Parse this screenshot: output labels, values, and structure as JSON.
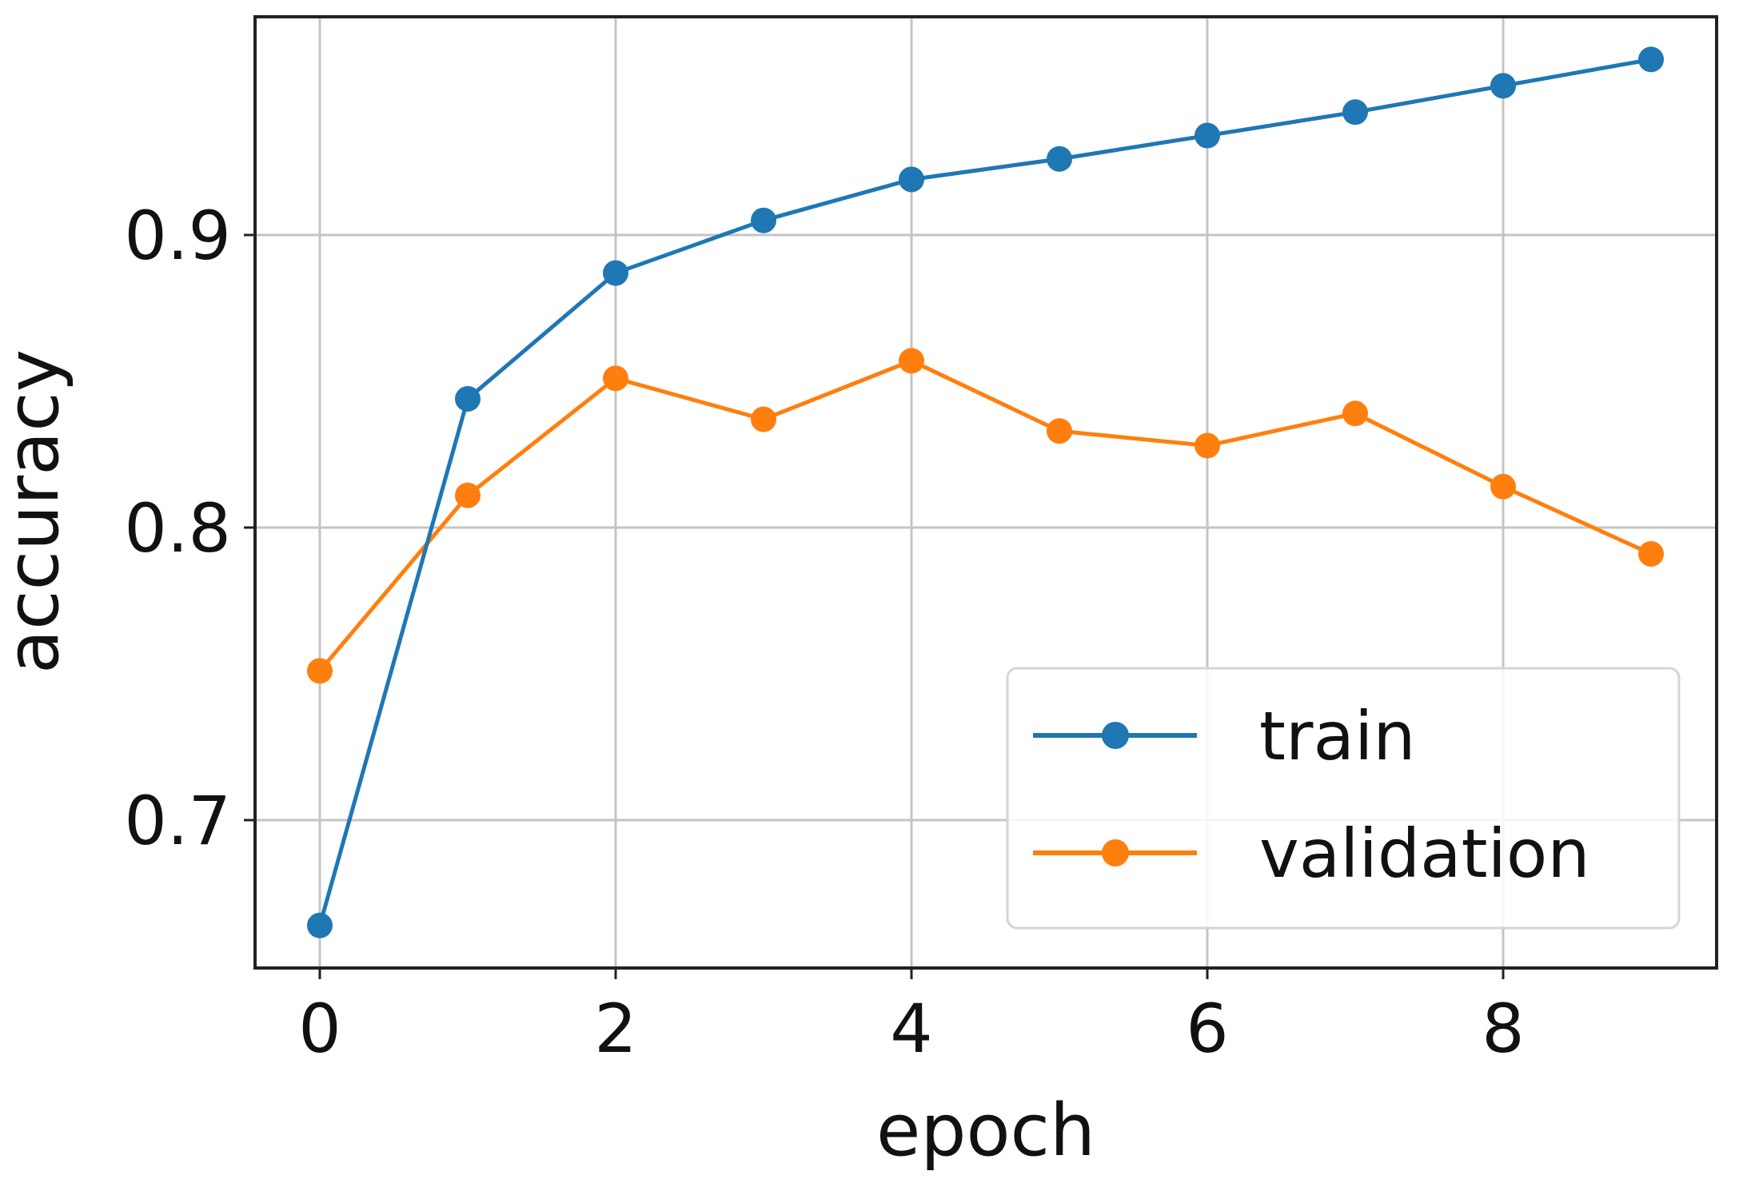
{
  "chart_data": {
    "type": "line",
    "title": "",
    "xlabel": "epoch",
    "ylabel": "accuracy",
    "x": [
      0,
      1,
      2,
      3,
      4,
      5,
      6,
      7,
      8,
      9
    ],
    "xticks": [
      0,
      2,
      4,
      6,
      8
    ],
    "xtick_labels": [
      "0",
      "2",
      "4",
      "6",
      "8"
    ],
    "yticks": [
      0.7,
      0.8,
      0.9
    ],
    "ytick_labels": [
      "0.7",
      "0.8",
      "0.9"
    ],
    "xlim": [
      -0.44,
      9.48
    ],
    "ylim": [
      0.651,
      0.976
    ],
    "grid": true,
    "legend_position": "lower right",
    "series": [
      {
        "name": "train",
        "color": "#1f77b4",
        "marker": "circle",
        "values": [
          0.664,
          0.844,
          0.887,
          0.905,
          0.919,
          0.926,
          0.934,
          0.942,
          0.951,
          0.96
        ]
      },
      {
        "name": "validation",
        "color": "#ff7f0e",
        "marker": "circle",
        "values": [
          0.751,
          0.811,
          0.851,
          0.837,
          0.857,
          0.833,
          0.828,
          0.839,
          0.814,
          0.791
        ]
      }
    ]
  },
  "legend": {
    "items": [
      {
        "label": "train",
        "color": "#1f77b4"
      },
      {
        "label": "validation",
        "color": "#ff7f0e"
      }
    ]
  }
}
